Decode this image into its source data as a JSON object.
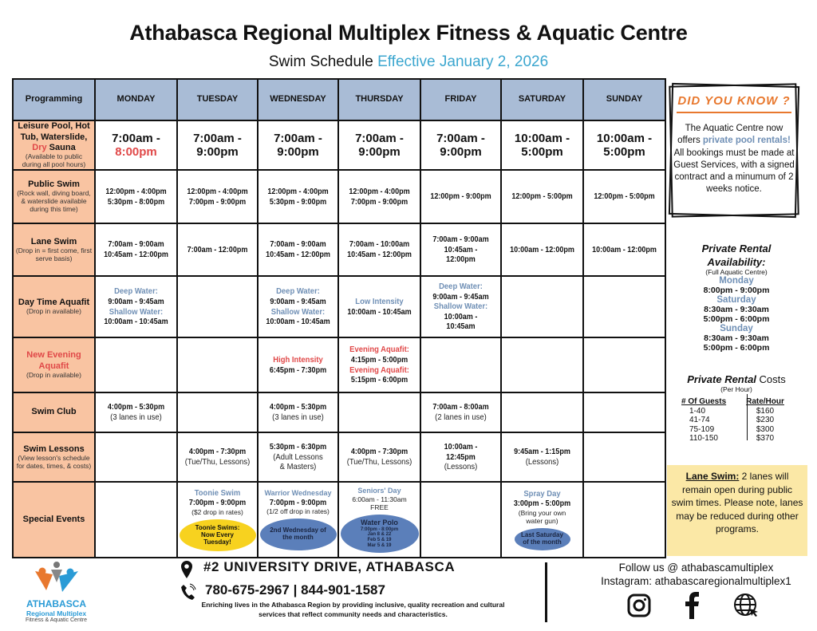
{
  "header": {
    "title": "Athabasca Regional Multiplex Fitness & Aquatic Centre",
    "subtitle": "Swim Schedule",
    "effective": "Effective January 2, 2026"
  },
  "table": {
    "corner": "Programming",
    "days": [
      "MONDAY",
      "TUESDAY",
      "WEDNESDAY",
      "THURSDAY",
      "FRIDAY",
      "SATURDAY",
      "SUNDAY"
    ],
    "rows": [
      {
        "label": [
          {
            "t": "Leisure Pool, Hot Tub, Waterslide, "
          },
          {
            "t": "Dry",
            "red": true
          },
          {
            "t": " Sauna"
          }
        ],
        "sub": "(Available to public during all pool hours)",
        "h": 62,
        "cells": [
          [
            {
              "s": "big",
              "t": "7:00am -"
            },
            {
              "s": "bigred",
              "t": "8:00pm"
            }
          ],
          [
            {
              "s": "big",
              "t": "7:00am -"
            },
            {
              "s": "big",
              "t": "9:00pm"
            }
          ],
          [
            {
              "s": "big",
              "t": "7:00am -"
            },
            {
              "s": "big",
              "t": "9:00pm"
            }
          ],
          [
            {
              "s": "big",
              "t": "7:00am -"
            },
            {
              "s": "big",
              "t": "9:00pm"
            }
          ],
          [
            {
              "s": "big",
              "t": "7:00am -"
            },
            {
              "s": "big",
              "t": "9:00pm"
            }
          ],
          [
            {
              "s": "big",
              "t": "10:00am -"
            },
            {
              "s": "big",
              "t": "5:00pm"
            }
          ],
          [
            {
              "s": "big",
              "t": "10:00am -"
            },
            {
              "s": "big",
              "t": "5:00pm"
            }
          ]
        ]
      },
      {
        "label": [
          {
            "t": "Public Swim"
          }
        ],
        "sub": "(Rock wall, diving board, & waterslide available during this time)",
        "h": 67,
        "cells": [
          [
            {
              "s": "t",
              "t": "12:00pm - 4:00pm"
            },
            {
              "s": "t",
              "t": "5:30pm - 8:00pm"
            }
          ],
          [
            {
              "s": "t",
              "t": "12:00pm - 4:00pm"
            },
            {
              "s": "t",
              "t": "7:00pm - 9:00pm"
            }
          ],
          [
            {
              "s": "t",
              "t": "12:00pm - 4:00pm"
            },
            {
              "s": "t",
              "t": "5:30pm - 9:00pm"
            }
          ],
          [
            {
              "s": "t",
              "t": "12:00pm - 4:00pm"
            },
            {
              "s": "t",
              "t": "7:00pm - 9:00pm"
            }
          ],
          [
            {
              "s": "t",
              "t": "12:00pm - 9:00pm"
            }
          ],
          [
            {
              "s": "t",
              "t": "12:00pm - 5:00pm"
            }
          ],
          [
            {
              "s": "t",
              "t": "12:00pm - 5:00pm"
            }
          ]
        ]
      },
      {
        "label": [
          {
            "t": "Lane Swim"
          }
        ],
        "sub": "(Drop in = first come, first serve basis)",
        "h": 66,
        "cells": [
          [
            {
              "s": "t",
              "t": "7:00am - 9:00am"
            },
            {
              "s": "t",
              "t": "10:45am - 12:00pm"
            }
          ],
          [
            {
              "s": "t",
              "t": "7:00am - 12:00pm"
            }
          ],
          [
            {
              "s": "t",
              "t": "7:00am - 9:00am"
            },
            {
              "s": "t",
              "t": "10:45am - 12:00pm"
            }
          ],
          [
            {
              "s": "t",
              "t": "7:00am - 10:00am"
            },
            {
              "s": "t",
              "t": "10:45am - 12:00pm"
            }
          ],
          [
            {
              "s": "t",
              "t": "7:00am - 9:00am"
            },
            {
              "s": "t",
              "t": "10:45am -"
            },
            {
              "s": "t",
              "t": "12:00pm"
            }
          ],
          [
            {
              "s": "t",
              "t": "10:00am - 12:00pm"
            }
          ],
          [
            {
              "s": "t",
              "t": "10:00am - 12:00pm"
            }
          ]
        ]
      },
      {
        "label": [
          {
            "t": "Day Time Aquafit"
          }
        ],
        "sub": "(Drop in available)",
        "h": 77,
        "cells": [
          [
            {
              "s": "blue",
              "t": "Deep Water:"
            },
            {
              "s": "t",
              "t": "9:00am - 9:45am"
            },
            {
              "s": "blue",
              "t": "Shallow Water:"
            },
            {
              "s": "t",
              "t": "10:00am - 10:45am"
            }
          ],
          [],
          [
            {
              "s": "blue",
              "t": "Deep Water:"
            },
            {
              "s": "t",
              "t": "9:00am - 9:45am"
            },
            {
              "s": "blue",
              "t": "Shallow Water:"
            },
            {
              "s": "t",
              "t": "10:00am - 10:45am"
            }
          ],
          [
            {
              "s": "blue",
              "t": "Low Intensity"
            },
            {
              "s": "t",
              "t": "10:00am - 10:45am"
            }
          ],
          [
            {
              "s": "blue",
              "t": "Deep Water:"
            },
            {
              "s": "t",
              "t": "9:00am - 9:45am"
            },
            {
              "s": "blue",
              "t": "Shallow Water:"
            },
            {
              "s": "t",
              "t": "10:00am -"
            },
            {
              "s": "t",
              "t": "10:45am"
            }
          ],
          [],
          []
        ]
      },
      {
        "label": [
          {
            "t": "New Evening Aquafit",
            "red": true
          }
        ],
        "sub": "(Drop in available)",
        "h": 69,
        "cells": [
          [],
          [],
          [
            {
              "s": "red",
              "t": "High Intensity"
            },
            {
              "s": "t",
              "t": "6:45pm - 7:30pm"
            }
          ],
          [
            {
              "s": "red",
              "t": "Evening Aquafit:"
            },
            {
              "s": "t",
              "t": "4:15pm - 5:00pm"
            },
            {
              "s": "red",
              "t": "Evening Aquafit:"
            },
            {
              "s": "t",
              "t": "5:15pm - 6:00pm"
            }
          ],
          [],
          [],
          []
        ]
      },
      {
        "label": [
          {
            "t": "Swim Club"
          }
        ],
        "sub": "",
        "h": 50,
        "cells": [
          [
            {
              "s": "t",
              "t": "4:00pm - 5:30pm"
            },
            {
              "s": "n",
              "t": "(3 lanes in use)"
            }
          ],
          [],
          [
            {
              "s": "t",
              "t": "4:00pm - 5:30pm"
            },
            {
              "s": "n",
              "t": "(3 lanes in use)"
            }
          ],
          [],
          [
            {
              "s": "t",
              "t": "7:00am - 8:00am"
            },
            {
              "s": "n",
              "t": "(2 lanes in use)"
            }
          ],
          [],
          []
        ]
      },
      {
        "label": [
          {
            "t": "Swim Lessons"
          }
        ],
        "sub": "(View lesson's schedule for dates, times, & costs)",
        "h": 62,
        "cells": [
          [],
          [
            {
              "s": "t",
              "t": "4:00pm - 7:30pm"
            },
            {
              "s": "n",
              "t": "(Tue/Thu, Lessons)"
            }
          ],
          [
            {
              "s": "t",
              "t": "5:30pm - 6:30pm"
            },
            {
              "s": "n",
              "t": "(Adult Lessons"
            },
            {
              "s": "n",
              "t": "& Masters)"
            }
          ],
          [
            {
              "s": "t",
              "t": "4:00pm - 7:30pm"
            },
            {
              "s": "n",
              "t": "(Tue/Thu, Lessons)"
            }
          ],
          [
            {
              "s": "t",
              "t": "10:00am -"
            },
            {
              "s": "t",
              "t": "12:45pm"
            },
            {
              "s": "n",
              "t": "(Lessons)"
            }
          ],
          [
            {
              "s": "t",
              "t": "9:45am - 1:15pm"
            },
            {
              "s": "n",
              "t": "(Lessons)"
            }
          ],
          []
        ]
      },
      {
        "label": [
          {
            "t": "Special Events"
          }
        ],
        "sub": "",
        "h": 95,
        "cells": [
          [],
          [
            {
              "s": "blue",
              "t": "Toonie Swim"
            },
            {
              "s": "t",
              "t": "7:00pm - 9:00pm"
            },
            {
              "s": "sm",
              "t": "($2 drop in rates)"
            },
            {
              "oval": {
                "color": "#f7d21f",
                "w": 96,
                "h": 40,
                "lines": [
                  "Toonie Swims:",
                  "Now Every",
                  "Tuesday!"
                ]
              }
            }
          ],
          [
            {
              "s": "bluesm",
              "t": "Warrior Wednesday"
            },
            {
              "s": "t",
              "t": "7:00pm - 9:00pm"
            },
            {
              "s": "sm",
              "t": "(1/2 off drop in rates)"
            },
            {
              "oval": {
                "color": "#5b7fba",
                "w": 96,
                "h": 40,
                "lines": [
                  "2nd Wednesday of",
                  "the month"
                ]
              }
            }
          ],
          [
            {
              "s": "bluesm",
              "t": "Seniors' Day"
            },
            {
              "s": "sm",
              "t": "6:00am - 11:30am"
            },
            {
              "s": "sm",
              "t": "FREE"
            },
            {
              "oval": {
                "color": "#5b7fba",
                "w": 98,
                "h": 48,
                "lines": [
                  "Water Polo",
                  "7:00pm - 8:00pm",
                  "Jan 8 & 22",
                  "Feb 5 & 19",
                  "Mar 5 & 19"
                ]
              }
            }
          ],
          [],
          [
            {
              "s": "blue",
              "t": "Spray Day"
            },
            {
              "s": "t",
              "t": "3:00pm - 5:00pm"
            },
            {
              "s": "sm",
              "t": "(Bring your own"
            },
            {
              "s": "sm",
              "t": "water gun)"
            },
            {
              "oval": {
                "color": "#5b7fba",
                "w": 70,
                "h": 28,
                "lines": [
                  "Last Saturday",
                  "of the month"
                ]
              }
            }
          ],
          []
        ]
      }
    ]
  },
  "did_you_know": {
    "heading": "DID YOU KNOW ?",
    "text_1": "The Aquatic Centre now offers ",
    "highlight": "private pool rentals!",
    "text_2": " All bookings must be made at Guest Services, with a signed contract and a minumum of 2 weeks notice."
  },
  "private_rental": {
    "heading_1": "Private Rental",
    "heading_2": "Availability:",
    "note": "(Full Aquatic Centre)",
    "days": [
      {
        "day": "Monday",
        "times": [
          "8:00pm - 9:00pm"
        ]
      },
      {
        "day": "Saturday",
        "times": [
          "8:30am - 9:30am",
          "5:00pm - 6:00pm"
        ]
      },
      {
        "day": "Sunday",
        "times": [
          "8:30am - 9:30am",
          "5:00pm - 6:00pm"
        ]
      }
    ]
  },
  "rental_costs": {
    "heading_italic": "Private Rental",
    "heading_rest": " Costs",
    "per": "(Per Hour)",
    "col_guests": "# Of Guests",
    "col_rate": "Rate/Hour",
    "rows": [
      {
        "guests": "1-40",
        "rate": "$160"
      },
      {
        "guests": "41-74",
        "rate": "$230"
      },
      {
        "guests": "75-109",
        "rate": "$300"
      },
      {
        "guests": "110-150",
        "rate": "$370"
      }
    ]
  },
  "lane_note": {
    "label": "Lane Swim:",
    "text": " 2 lanes will remain open during public swim times. Please note, lanes may be reduced during other programs."
  },
  "footer": {
    "logo_name": "ATHABASCA",
    "logo_sub": "Regional Multiplex",
    "logo_tag": "Fitness & Aquatic Centre",
    "address": "#2 UNIVERSITY DRIVE, ATHABASCA",
    "phone": "780-675-2967 | 844-901-1587",
    "tagline": "Enriching lives in the Athabasca Region by providing inclusive, quality recreation and cultural services that reflect community needs and characteristics.",
    "follow": "Follow us @ athabascamultiplex",
    "instagram": "Instagram: athabascaregionalmultiplex1"
  },
  "colors": {
    "header_blue": "#a9bcd6",
    "row_label_peach": "#f9c4a2",
    "accent_red": "#e04848",
    "accent_blue": "#6f8fb5",
    "effective_blue": "#3ba6cf",
    "toonie_yellow": "#f7d21f",
    "oval_blue": "#5b7fba",
    "note_yellow": "#fbe8a6",
    "dyk_orange": "#e8782e"
  }
}
